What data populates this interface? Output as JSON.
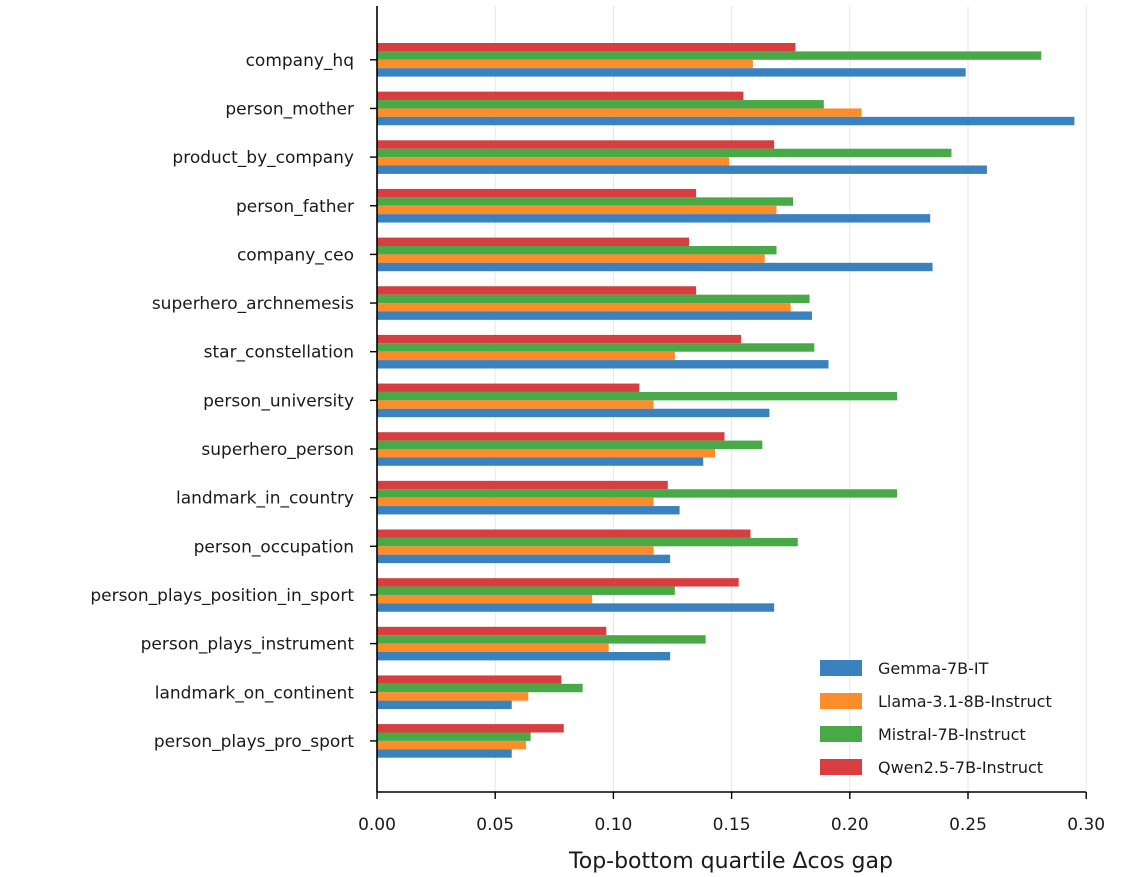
{
  "chart_data": {
    "type": "bar",
    "orientation": "horizontal",
    "title": "",
    "xlabel": "Top-bottom quartile Δcos  gap",
    "ylabel": "",
    "xlim": [
      0,
      0.31
    ],
    "xticks": [
      "0.00",
      "0.05",
      "0.10",
      "0.15",
      "0.20",
      "0.25",
      "0.30"
    ],
    "grid": "vertical",
    "legend_position": "bottom-right",
    "categories": [
      "company_hq",
      "person_mother",
      "product_by_company",
      "person_father",
      "company_ceo",
      "superhero_archnemesis",
      "star_constellation",
      "person_university",
      "superhero_person",
      "landmark_in_country",
      "person_occupation",
      "person_plays_position_in_sport",
      "person_plays_instrument",
      "landmark_on_continent",
      "person_plays_pro_sport"
    ],
    "series": [
      {
        "name": "Gemma-7B-IT",
        "color": "#3a81bf",
        "values": [
          0.249,
          0.295,
          0.258,
          0.234,
          0.235,
          0.184,
          0.191,
          0.166,
          0.138,
          0.128,
          0.124,
          0.168,
          0.124,
          0.057,
          0.057
        ]
      },
      {
        "name": "Llama-3.1-8B-Instruct",
        "color": "#fd8d2a",
        "values": [
          0.159,
          0.205,
          0.149,
          0.169,
          0.164,
          0.175,
          0.126,
          0.117,
          0.143,
          0.117,
          0.117,
          0.091,
          0.098,
          0.064,
          0.063
        ]
      },
      {
        "name": "Mistral-7B-Instruct",
        "color": "#47aa47",
        "values": [
          0.281,
          0.189,
          0.243,
          0.176,
          0.169,
          0.183,
          0.185,
          0.22,
          0.163,
          0.22,
          0.178,
          0.126,
          0.139,
          0.087,
          0.065
        ]
      },
      {
        "name": "Qwen2.5-7B-Instruct",
        "color": "#d83e40",
        "values": [
          0.177,
          0.155,
          0.168,
          0.135,
          0.132,
          0.135,
          0.154,
          0.111,
          0.147,
          0.123,
          0.158,
          0.153,
          0.097,
          0.078,
          0.079
        ]
      }
    ]
  }
}
